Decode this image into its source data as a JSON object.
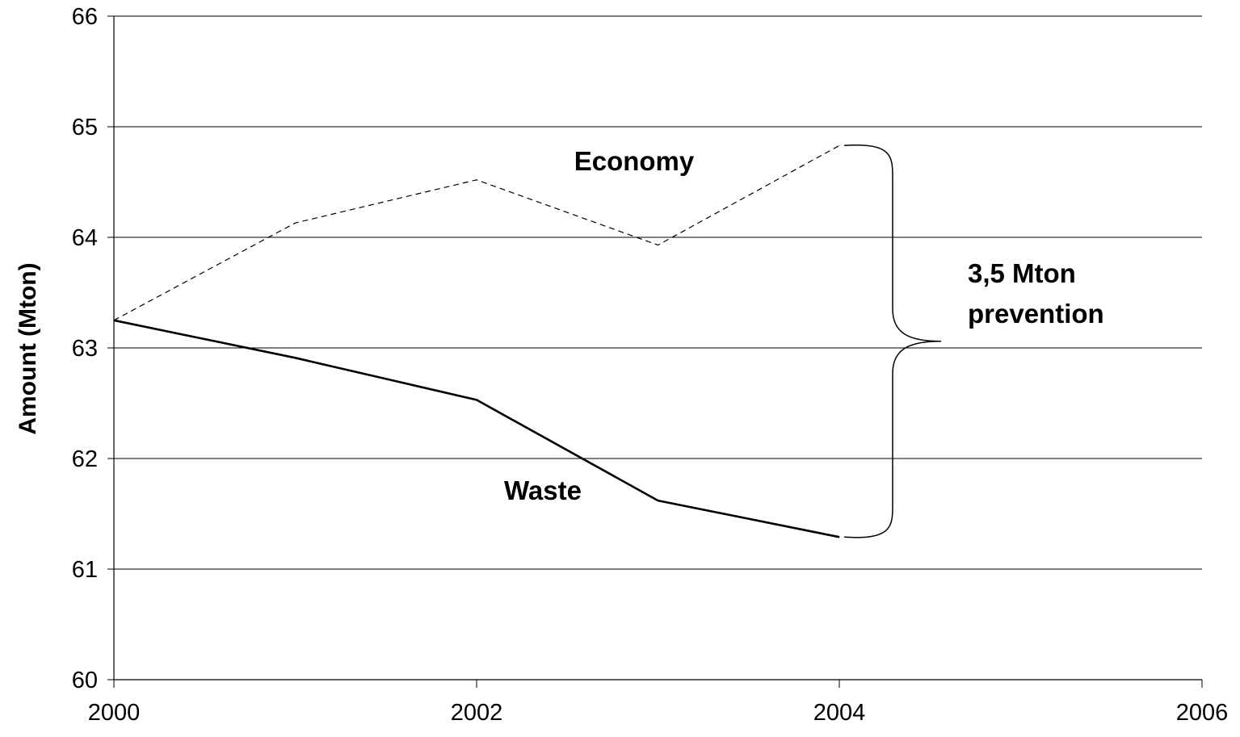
{
  "chart_data": {
    "type": "line",
    "title": "",
    "xlabel": "",
    "ylabel": "Amount (Mton)",
    "xlim": [
      2000,
      2006
    ],
    "ylim": [
      60,
      66
    ],
    "x_ticks": [
      "2000",
      "2002",
      "2004",
      "2006"
    ],
    "y_ticks": [
      "60",
      "61",
      "62",
      "63",
      "64",
      "65",
      "66"
    ],
    "grid": "horizontal",
    "legend": "none",
    "series": [
      {
        "name": "Economy",
        "style": "dashed",
        "x": [
          2000,
          2001,
          2002,
          2003,
          2004
        ],
        "values": [
          63.25,
          64.13,
          64.52,
          63.93,
          64.83
        ]
      },
      {
        "name": "Waste",
        "style": "solid",
        "x": [
          2000,
          2001,
          2002,
          2003,
          2004
        ],
        "values": [
          63.25,
          62.91,
          62.53,
          61.62,
          61.29
        ]
      }
    ],
    "annotations": {
      "bracket_line1": "3,5 Mton",
      "bracket_line2": "prevention",
      "bracket_x": 2004
    }
  }
}
